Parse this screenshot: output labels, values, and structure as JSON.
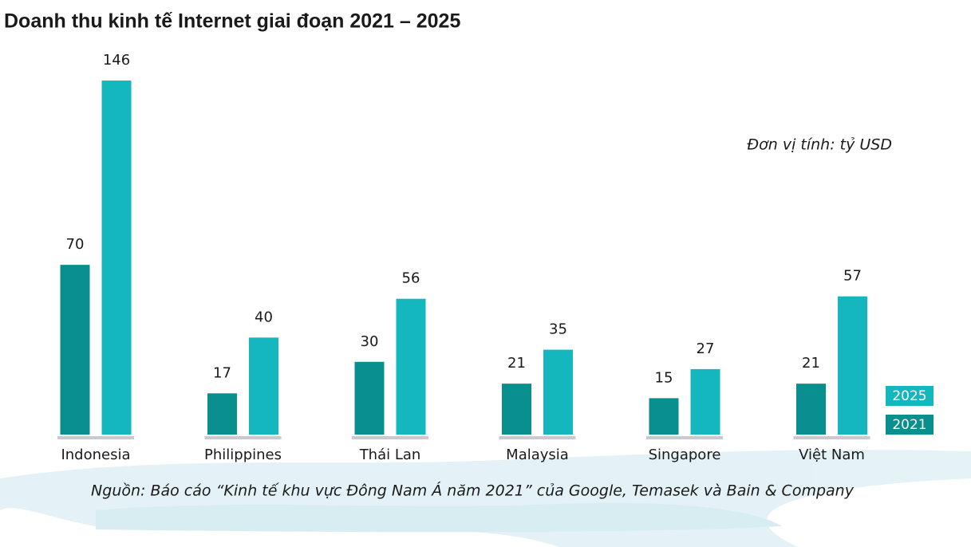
{
  "chart_data": {
    "type": "bar",
    "title": "Doanh thu kinh tế Internet giai đoạn 2021 – 2025",
    "unit_note": "Đơn vị tính: tỷ USD",
    "source": "Nguồn: Báo cáo “Kinh tế khu vực Đông Nam Á năm 2021” của Google, Temasek và Bain & Company",
    "categories": [
      "Indonesia",
      "Philippines",
      "Thái Lan",
      "Malaysia",
      "Singapore",
      "Việt Nam"
    ],
    "series": [
      {
        "name": "2021",
        "color": "#0a8f8f",
        "values": [
          70,
          17,
          30,
          21,
          15,
          21
        ]
      },
      {
        "name": "2025",
        "color": "#14b7bd",
        "values": [
          146,
          40,
          56,
          35,
          27,
          57
        ]
      }
    ]
  }
}
